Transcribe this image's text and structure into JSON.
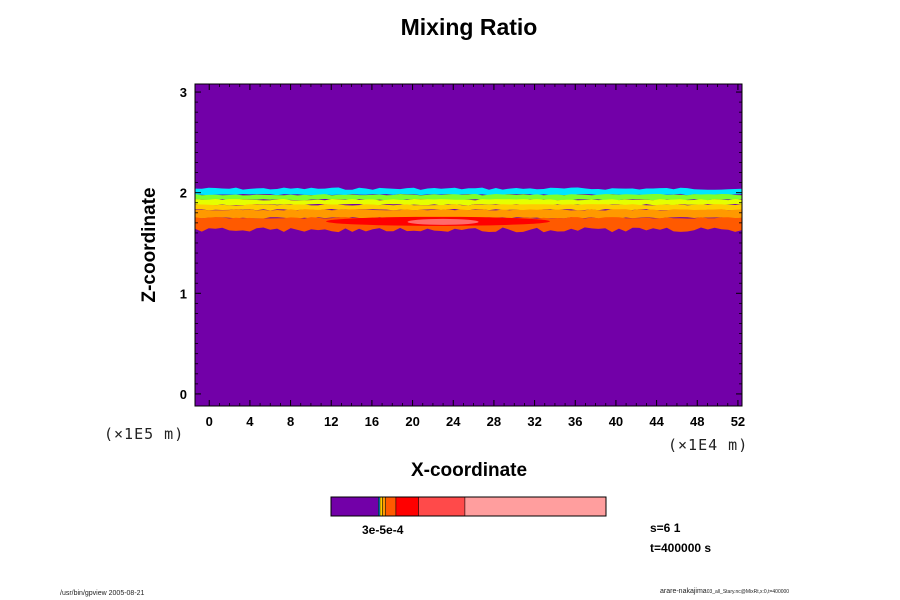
{
  "chart_data": {
    "type": "heatmap",
    "title": "Mixing Ratio",
    "xlabel": "X-coordinate",
    "ylabel": "Z-coordinate",
    "x_unit": "(×1E4 m)",
    "y_unit": "(×1E5 m)",
    "xlim": [
      -1.4,
      52.4
    ],
    "ylim": [
      -0.12,
      3.08
    ],
    "x_ticks": [
      "0",
      "4",
      "8",
      "12",
      "16",
      "20",
      "24",
      "28",
      "32",
      "36",
      "40",
      "44",
      "48",
      "52"
    ],
    "y_ticks": [
      "0",
      "1",
      "2",
      "3"
    ],
    "background_color": "#7200a8",
    "layer_bands": [
      {
        "color": "#00e6ff",
        "z_top": 2.04,
        "z_bottom": 1.98
      },
      {
        "color": "#7fff2a",
        "z_top": 1.98,
        "z_bottom": 1.93
      },
      {
        "color": "#e6ff00",
        "z_top": 1.93,
        "z_bottom": 1.88
      },
      {
        "color": "#ffcc00",
        "z_top": 1.88,
        "z_bottom": 1.83
      },
      {
        "color": "#ff9900",
        "z_top": 1.83,
        "z_bottom": 1.75
      },
      {
        "color": "#ff5a00",
        "z_top": 1.75,
        "z_bottom": 1.63
      }
    ],
    "core_regions": [
      {
        "color": "#ff0000",
        "x_range": [
          11.5,
          33.5
        ],
        "z_range": [
          1.67,
          1.76
        ]
      },
      {
        "color": "#ff6b6b",
        "x_range": [
          19.5,
          26.5
        ],
        "z_range": [
          1.68,
          1.74
        ]
      }
    ],
    "colorbar": {
      "segments": [
        {
          "color": "#7200a8",
          "weight": 46
        },
        {
          "color": "#00a0ff",
          "weight": 1.5
        },
        {
          "color": "#ffcc00",
          "weight": 2.5
        },
        {
          "color": "#ff9900",
          "weight": 3
        },
        {
          "color": "#ff5a00",
          "weight": 10
        },
        {
          "color": "#ff0000",
          "weight": 22
        },
        {
          "color": "#ff4a4a",
          "weight": 45
        },
        {
          "color": "#ff9e9e",
          "weight": 137
        }
      ],
      "labels": "3e-5e-4"
    },
    "annotations": {
      "step": "s=6 1",
      "time": "t=400000 s"
    }
  },
  "footer": {
    "left": "/usr/bin/gpview 2005-08-21",
    "right_main": "arare-nakajima",
    "right_small": "03_all_Stary.nc@MixRt,x:0,t=400000"
  }
}
